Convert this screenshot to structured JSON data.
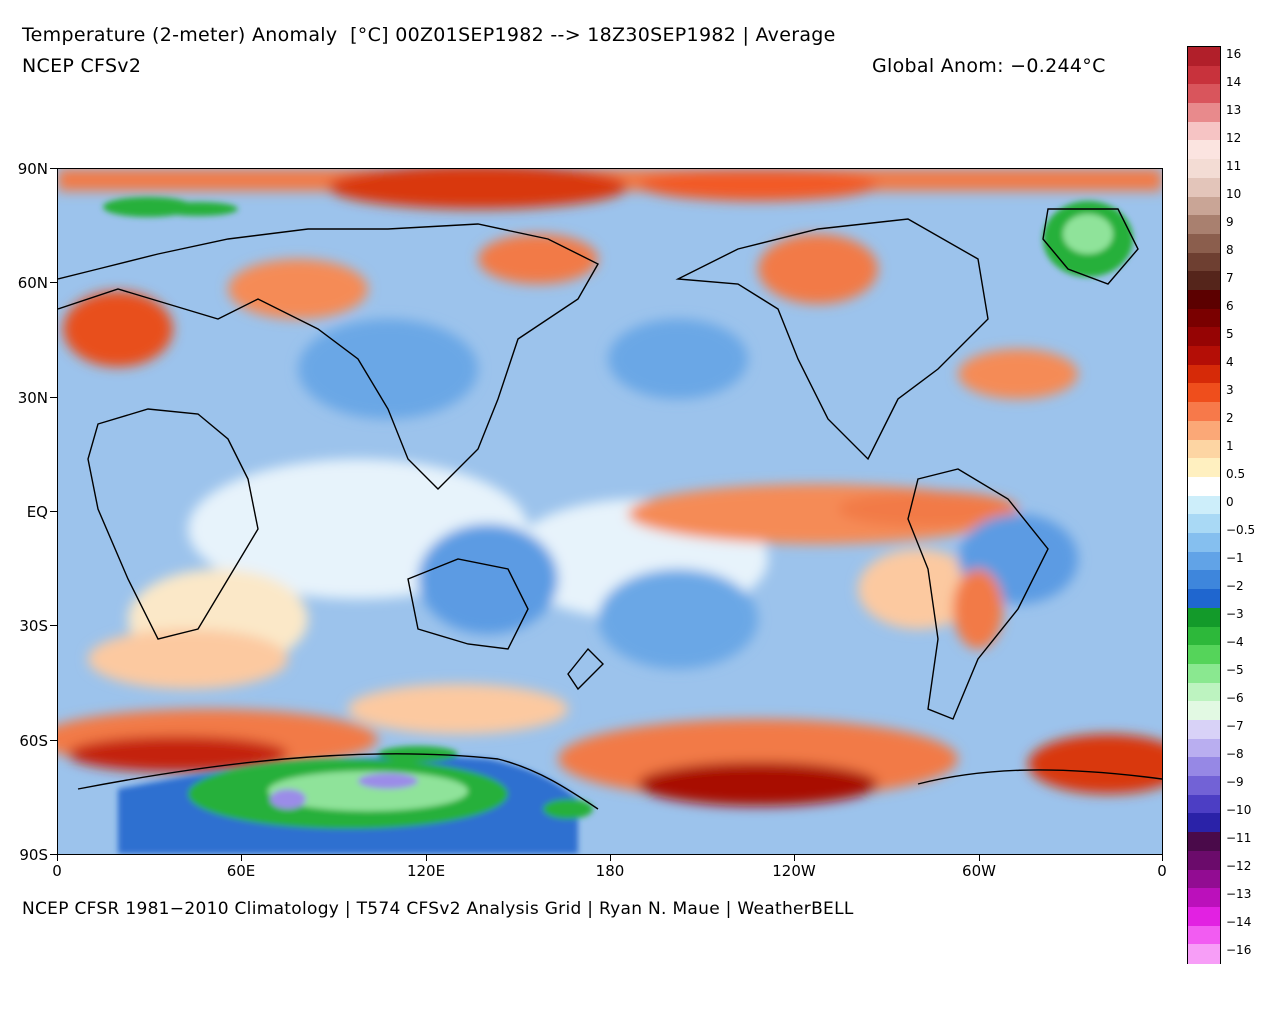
{
  "header": {
    "title": "Temperature (2-meter) Anomaly  [°C] 00Z01SEP1982 --> 18Z30SEP1982 | Average",
    "model": "NCEP CFSv2",
    "global_anomaly": "Global Anom: −0.244°C"
  },
  "footer": {
    "credit": "NCEP CFSR 1981−2010 Climatology | T574 CFSv2 Analysis Grid | Ryan N. Maue | WeatherBELL"
  },
  "axes": {
    "lat_labels": [
      "90N",
      "60N",
      "30N",
      "EQ",
      "30S",
      "60S",
      "90S"
    ],
    "lon_labels": [
      "0",
      "60E",
      "120E",
      "180",
      "120W",
      "60W",
      "0"
    ]
  },
  "colorbar": {
    "labels": [
      "16",
      "14",
      "13",
      "12",
      "11",
      "10",
      "9",
      "8",
      "7",
      "6",
      "5",
      "4",
      "3",
      "2",
      "1",
      "0.5",
      "0",
      "−0.5",
      "−1",
      "−2",
      "−3",
      "−4",
      "−5",
      "−6",
      "−7",
      "−8",
      "−9",
      "−10",
      "−11",
      "−12",
      "−13",
      "−14",
      "−16"
    ],
    "colors": [
      "#b11f2a",
      "#c8323c",
      "#d9555c",
      "#e88a8c",
      "#f6c4c4",
      "#fbe4e0",
      "#f3dcd4",
      "#e3c5ba",
      "#c9a596",
      "#a9806f",
      "#8b5e4d",
      "#6e3f31",
      "#55251b",
      "#5c0000",
      "#7a0000",
      "#960404",
      "#b40e06",
      "#d62a08",
      "#ef4e1c",
      "#f7794a",
      "#fba877",
      "#fdd5a3",
      "#fff0c0",
      "#ffffff",
      "#cdeefa",
      "#a9d9f5",
      "#85bfef",
      "#61a3e7",
      "#3e86dc",
      "#1f66cf",
      "#139a2a",
      "#2db83a",
      "#55d45a",
      "#8ae890",
      "#bdf3c0",
      "#e2f9e3",
      "#d8d2f7",
      "#b9aef0",
      "#9688e5",
      "#7262d6",
      "#4c3ec4",
      "#2a22a8",
      "#4a0a4a",
      "#6b0b6b",
      "#920c92",
      "#bb10bb",
      "#e221e2",
      "#f25cf2",
      "#f79ef7"
    ],
    "stops": 49
  },
  "map": {
    "projection": "cylindrical equidistant, 0 to 360",
    "lat_range": [
      -90,
      90
    ],
    "lon_range": [
      0,
      360
    ],
    "palette": {
      "ocean_base": "#9cc3ec",
      "strong_warm": "#c4200a",
      "warm": "#f27a46",
      "mild_warm": "#fcc9a0",
      "neutral": "#ffffff",
      "mild_cool": "#bfe2f7",
      "cool": "#6aa7e6",
      "strong_cool": "#2f6fd0",
      "green": "#27b03a",
      "light_green": "#8fe39a",
      "purple": "#9b8ce8",
      "coast": "#000000"
    }
  }
}
